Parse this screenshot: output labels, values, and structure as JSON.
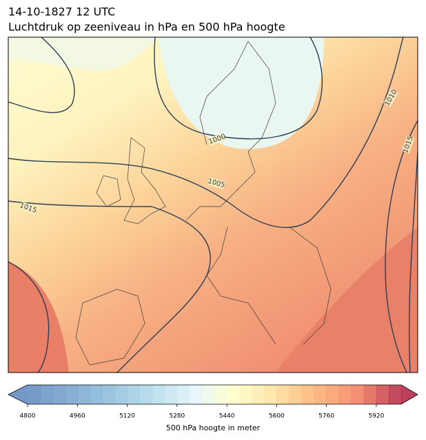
{
  "header": {
    "date": "14-10-1827 12 UTC",
    "title": "Luchtdruk op zeeniveau in hPa en 500 hPa hoogte"
  },
  "isobar_labels": [
    1000,
    1005,
    1010,
    1015,
    1015
  ],
  "colorbar": {
    "label": "500 hPa hoogte in meter",
    "range": [
      4800,
      6000
    ],
    "ticks": [
      4800,
      4960,
      5120,
      5280,
      5440,
      5600,
      5760,
      5920
    ]
  }
}
